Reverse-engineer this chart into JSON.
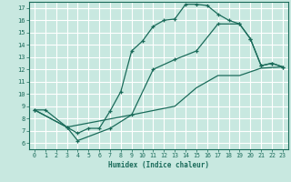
{
  "xlabel": "Humidex (Indice chaleur)",
  "bg_color": "#c8e8e0",
  "grid_color": "#ffffff",
  "line_color": "#1a6b5a",
  "xlim": [
    -0.5,
    23.5
  ],
  "ylim": [
    5.5,
    17.5
  ],
  "xticks": [
    0,
    1,
    2,
    3,
    4,
    5,
    6,
    7,
    8,
    9,
    10,
    11,
    12,
    13,
    14,
    15,
    16,
    17,
    18,
    19,
    20,
    21,
    22,
    23
  ],
  "yticks": [
    6,
    7,
    8,
    9,
    10,
    11,
    12,
    13,
    14,
    15,
    16,
    17
  ],
  "curve1_x": [
    0,
    1,
    3,
    4,
    5,
    6,
    7,
    8,
    9,
    10,
    11,
    12,
    13,
    14,
    15,
    16,
    17,
    18,
    19,
    20,
    21,
    22,
    23
  ],
  "curve1_y": [
    8.7,
    8.7,
    7.3,
    6.8,
    7.2,
    7.2,
    8.6,
    10.2,
    13.5,
    14.3,
    15.5,
    16.0,
    16.1,
    17.3,
    17.3,
    17.2,
    16.5,
    16.0,
    15.7,
    14.5,
    12.3,
    12.5,
    12.2
  ],
  "curve2_x": [
    0,
    3,
    4,
    7,
    9,
    11,
    13,
    15,
    17,
    19,
    20,
    21,
    22,
    23
  ],
  "curve2_y": [
    8.7,
    7.3,
    6.2,
    7.2,
    8.3,
    12.0,
    12.8,
    13.5,
    15.7,
    15.7,
    14.5,
    12.3,
    12.5,
    12.2
  ],
  "curve3_x": [
    0,
    3,
    9,
    13,
    15,
    17,
    19,
    21,
    23
  ],
  "curve3_y": [
    8.7,
    7.3,
    8.3,
    9.0,
    10.5,
    11.5,
    11.5,
    12.1,
    12.2
  ]
}
